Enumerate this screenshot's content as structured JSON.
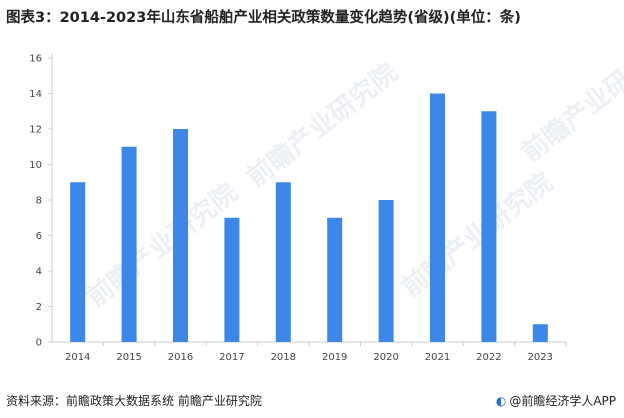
{
  "header": {
    "title": "图表3：2014-2023年山东省船舶产业相关政策数量变化趋势(省级)(单位：条)"
  },
  "footer": {
    "source": "资料来源：前瞻政策大数据系统 前瞻产业研究院",
    "brand": "@前瞻经济学人APP"
  },
  "watermark": {
    "text": "前瞻产业研究院"
  },
  "colors": {
    "bar": "#3d87e8",
    "axis": "#cccccc",
    "text": "#444444"
  },
  "chart_data": {
    "type": "bar",
    "title": "图表3：2014-2023年山东省船舶产业相关政策数量变化趋势(省级)(单位：条)",
    "categories": [
      "2014",
      "2015",
      "2016",
      "2017",
      "2018",
      "2019",
      "2020",
      "2021",
      "2022",
      "2023"
    ],
    "values": [
      9,
      11,
      12,
      7,
      9,
      7,
      8,
      14,
      13,
      1
    ],
    "ylim": [
      0,
      16
    ],
    "yticks": [
      0,
      2,
      4,
      6,
      8,
      10,
      12,
      14,
      16
    ],
    "xlabel": "",
    "ylabel": "",
    "grid": false,
    "legend": "none"
  }
}
